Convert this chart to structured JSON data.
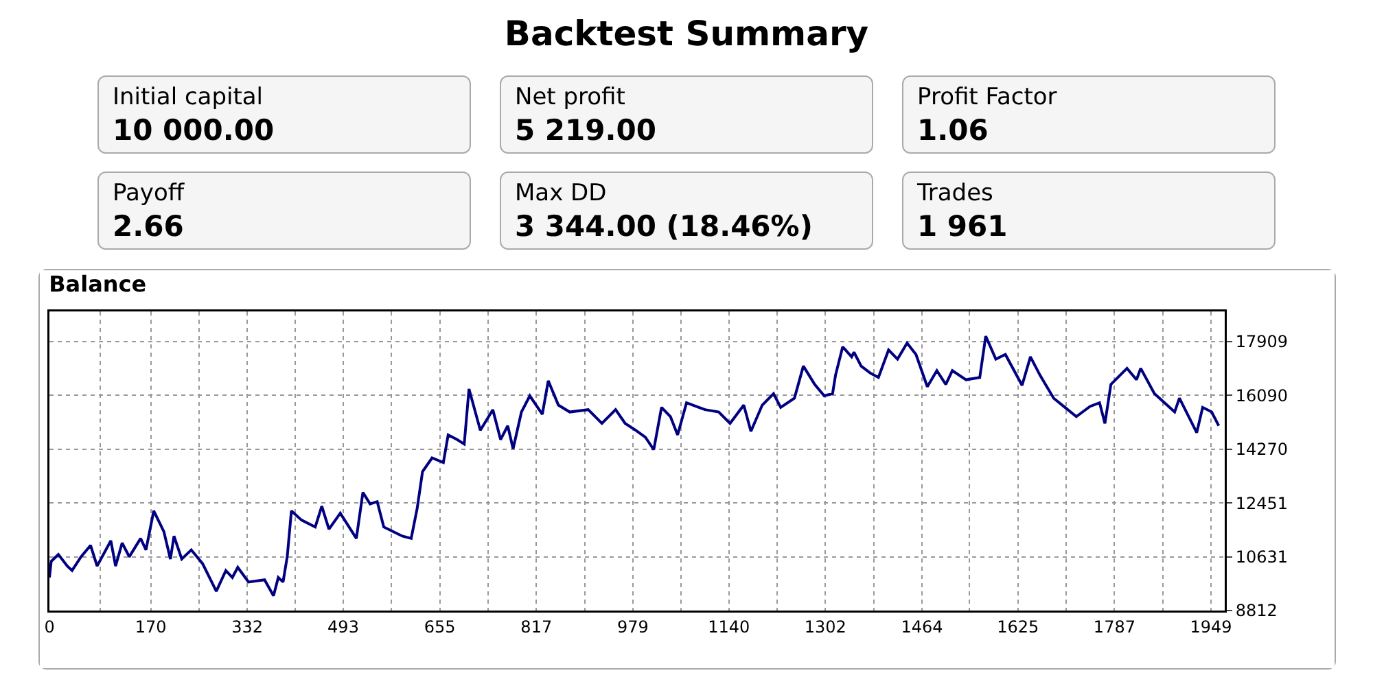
{
  "chart_data": [
    {
      "type": "other",
      "title": "Backtest Summary",
      "annotations": [
        "Initial capital",
        "10 000.00",
        "Net profit",
        "5 219.00",
        "Profit Factor",
        "1.06",
        "Payoff",
        "2.66",
        "Max DD",
        "3 344.00 (18.46%)",
        "Trades",
        "1 961"
      ]
    },
    {
      "type": "line",
      "title": "Balance",
      "color": "#000080",
      "grid": true,
      "marker": "none",
      "line_style": "solid",
      "x": [
        0,
        3,
        15,
        30,
        38,
        53,
        69,
        80,
        103,
        111,
        122,
        134,
        153,
        162,
        175,
        192,
        203,
        209,
        222,
        238,
        257,
        280,
        296,
        307,
        316,
        334,
        361,
        376,
        384,
        392,
        399,
        406,
        423,
        446,
        457,
        469,
        488,
        515,
        526,
        538,
        550,
        561,
        592,
        607,
        617,
        626,
        642,
        661,
        669,
        684,
        696,
        704,
        723,
        744,
        757,
        769,
        778,
        792,
        806,
        827,
        837,
        854,
        873,
        904,
        927,
        950,
        966,
        984,
        1000,
        1014,
        1027,
        1042,
        1054,
        1069,
        1100,
        1123,
        1142,
        1165,
        1177,
        1196,
        1215,
        1227,
        1250,
        1265,
        1284,
        1300,
        1314,
        1319,
        1331,
        1346,
        1350,
        1362,
        1377,
        1391,
        1408,
        1423,
        1439,
        1454,
        1473,
        1489,
        1504,
        1515,
        1538,
        1561,
        1571,
        1588,
        1604,
        1632,
        1646,
        1662,
        1685,
        1704,
        1723,
        1746,
        1762,
        1771,
        1781,
        1808,
        1824,
        1831,
        1854,
        1888,
        1896,
        1925,
        1935,
        1950,
        1962
      ],
      "values": [
        9931,
        10477,
        10710,
        10318,
        10165,
        10631,
        11018,
        10318,
        11175,
        10318,
        11098,
        10631,
        11252,
        10864,
        12184,
        11485,
        10553,
        11331,
        10553,
        10864,
        10398,
        9465,
        10165,
        9931,
        10272,
        9777,
        9852,
        9311,
        9931,
        9777,
        10631,
        12184,
        11872,
        11638,
        12343,
        11564,
        12105,
        11252,
        12810,
        12418,
        12497,
        11638,
        11331,
        11252,
        12264,
        13509,
        13975,
        13817,
        14751,
        14596,
        14443,
        16308,
        14908,
        15608,
        14596,
        15063,
        14283,
        15529,
        16075,
        15451,
        16584,
        15762,
        15529,
        15608,
        15142,
        15608,
        15142,
        14908,
        14675,
        14254,
        15685,
        15373,
        14751,
        15841,
        15608,
        15529,
        15142,
        15762,
        14876,
        15762,
        16150,
        15685,
        15996,
        17083,
        16462,
        16075,
        16150,
        16775,
        17735,
        17395,
        17549,
        17083,
        16850,
        16696,
        17629,
        17316,
        17861,
        17474,
        16383,
        16929,
        16462,
        16929,
        16619,
        16696,
        18095,
        17316,
        17474,
        16429,
        17395,
        16775,
        15996,
        15685,
        15373,
        15716,
        15841,
        15142,
        16462,
        17007,
        16619,
        17007,
        16150,
        15529,
        15996,
        14830,
        15685,
        15529,
        15063
      ],
      "xlim": [
        0,
        1972
      ],
      "ylim": [
        8812,
        18930
      ],
      "xticks": [
        0,
        {
          "value": 85,
          "label": null
        },
        170,
        {
          "value": 251,
          "label": null
        },
        332,
        {
          "value": 412,
          "label": null
        },
        493,
        {
          "value": 574,
          "label": null
        },
        655,
        {
          "value": 736,
          "label": null
        },
        817,
        {
          "value": 898,
          "label": null
        },
        979,
        {
          "value": 1060,
          "label": null
        },
        1140,
        {
          "value": 1221,
          "label": null
        },
        1302,
        {
          "value": 1383,
          "label": null
        },
        1464,
        {
          "value": 1544,
          "label": null
        },
        1625,
        {
          "value": 1706,
          "label": null
        },
        1787,
        {
          "value": 1868,
          "label": null
        },
        1949
      ],
      "yticks": [
        8812,
        10631,
        12451,
        14270,
        16090,
        17909
      ]
    }
  ]
}
